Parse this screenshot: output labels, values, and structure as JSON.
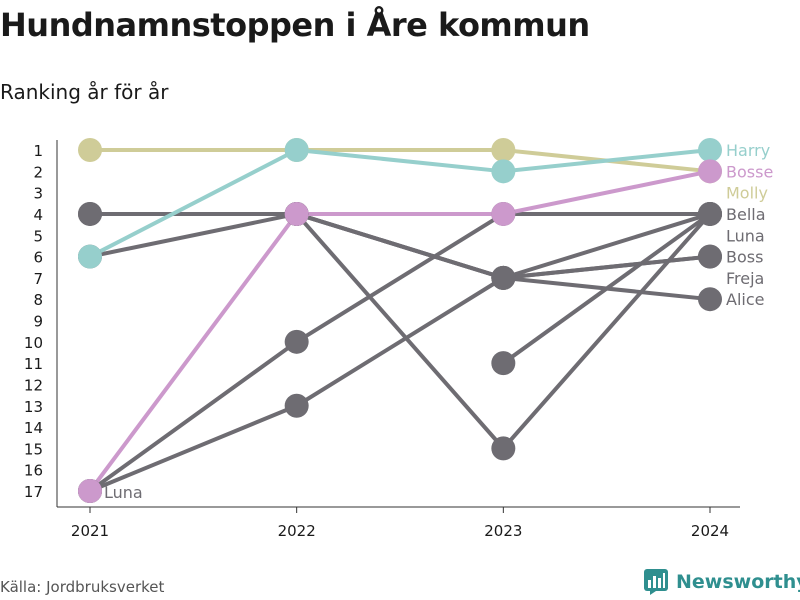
{
  "title": "Hundnamnstoppen i Åre kommun",
  "subtitle": "Ranking år för år",
  "source": "Källa: Jordbruksverket",
  "brand": {
    "name": "Newsworthy",
    "icon": "bar-chart-logo-icon",
    "color": "#2f8f8f"
  },
  "chart_data": {
    "type": "line",
    "x": [
      "2021",
      "2022",
      "2023",
      "2024"
    ],
    "ylim": [
      1,
      17
    ],
    "y_reversed": true,
    "yticks": [
      1,
      2,
      3,
      4,
      5,
      6,
      7,
      8,
      9,
      10,
      11,
      12,
      13,
      14,
      15,
      16,
      17
    ],
    "grid": false,
    "series": [
      {
        "name": "Bella",
        "color": "#6e6c72",
        "values": [
          4,
          4,
          7,
          6
        ]
      },
      {
        "name": "Boss",
        "color": "#6e6c72",
        "values": [
          6,
          4,
          7,
          6
        ]
      },
      {
        "name": "Freja",
        "color": "#6e6c72",
        "values": [
          17,
          13,
          7,
          4
        ]
      },
      {
        "name": "Alice",
        "color": "#6e6c72",
        "values": [
          4,
          4,
          7,
          8
        ]
      },
      {
        "name": "Luna",
        "color": "#6e6c72",
        "values": [
          17,
          10,
          4,
          4
        ]
      },
      {
        "name": "",
        "color": "#6e6c72",
        "values": [
          null,
          4,
          15,
          4
        ]
      },
      {
        "name": "",
        "color": "#6e6c72",
        "values": [
          null,
          null,
          11,
          4
        ]
      },
      {
        "name": "Molly",
        "color": "#cfcc98",
        "values": [
          1,
          1,
          1,
          2
        ]
      },
      {
        "name": "Harry",
        "color": "#96cfcc",
        "values": [
          6,
          1,
          2,
          1
        ]
      },
      {
        "name": "Bosse",
        "color": "#cc99cc",
        "values": [
          17,
          4,
          4,
          2
        ]
      }
    ],
    "end_labels": [
      {
        "text": "Harry",
        "rank": 1,
        "color": "#96cfcc"
      },
      {
        "text": "Bosse",
        "rank": 2,
        "color": "#cc99cc"
      },
      {
        "text": "Molly",
        "rank": 3,
        "color": "#cfcc98"
      },
      {
        "text": "Bella",
        "rank": 4,
        "color": "#6e6c72"
      },
      {
        "text": "Luna",
        "rank": 5,
        "color": "#6e6c72"
      },
      {
        "text": "Boss",
        "rank": 6,
        "color": "#6e6c72"
      },
      {
        "text": "Freja",
        "rank": 7,
        "color": "#6e6c72"
      },
      {
        "text": "Alice",
        "rank": 8,
        "color": "#6e6c72"
      }
    ],
    "start_label": {
      "text": "Luna",
      "rank": 17,
      "color": "#6e6c72"
    }
  }
}
